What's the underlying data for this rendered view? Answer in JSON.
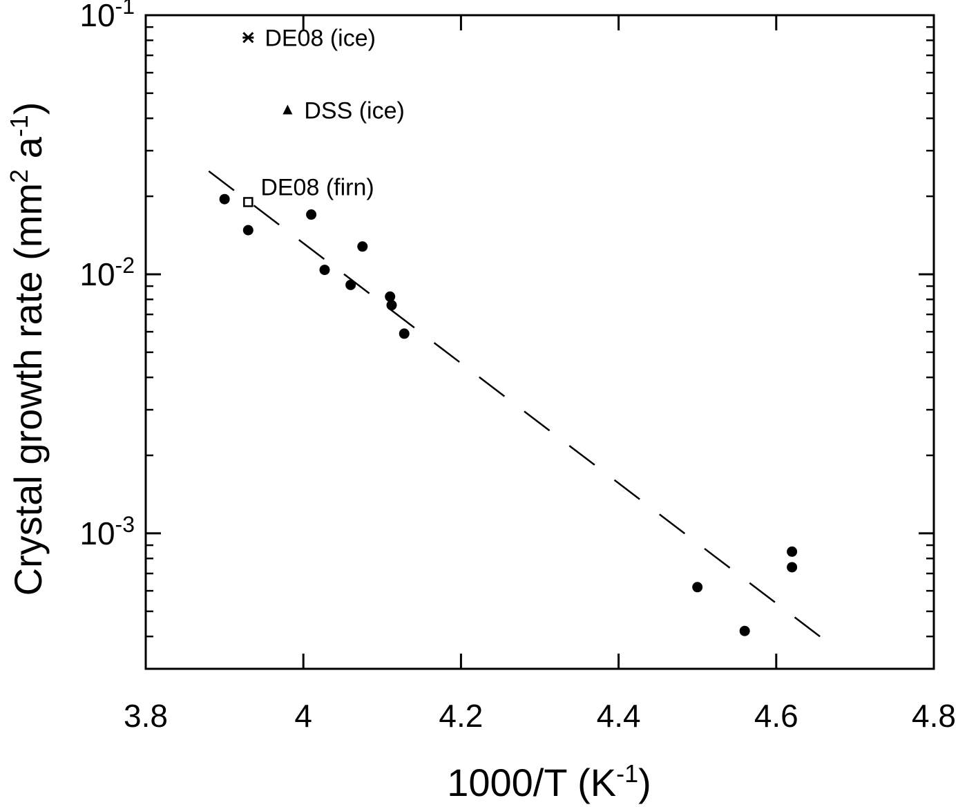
{
  "chart_data": {
    "type": "scatter",
    "xlabel": "1000/T (K",
    "xlabel_sup": "-1",
    "xlabel_end": ")",
    "ylabel": "Crystal growth rate (mm",
    "ylabel_sup1": "2",
    "ylabel_mid": " a",
    "ylabel_sup2": "-1",
    "ylabel_end": ")",
    "xlim": [
      3.8,
      4.8
    ],
    "ylim": [
      0.0003,
      0.1
    ],
    "yscale": "log",
    "grid": false,
    "xticks": [
      {
        "value": 3.8,
        "label": "3.8"
      },
      {
        "value": 4.0,
        "label": "4"
      },
      {
        "value": 4.2,
        "label": "4.2"
      },
      {
        "value": 4.4,
        "label": "4.4"
      },
      {
        "value": 4.6,
        "label": "4.6"
      },
      {
        "value": 4.8,
        "label": "4.8"
      }
    ],
    "yticks": [
      {
        "value": 0.1,
        "base": "10",
        "exp": "-1"
      },
      {
        "value": 0.01,
        "base": "10",
        "exp": "-2"
      },
      {
        "value": 0.001,
        "base": "10",
        "exp": "-3"
      }
    ],
    "series": [
      {
        "marker": "filled-circle",
        "points": [
          {
            "x": 3.9,
            "y": 0.0195
          },
          {
            "x": 3.93,
            "y": 0.0148
          },
          {
            "x": 4.01,
            "y": 0.017
          },
          {
            "x": 4.027,
            "y": 0.0104
          },
          {
            "x": 4.06,
            "y": 0.0091
          },
          {
            "x": 4.075,
            "y": 0.0128
          },
          {
            "x": 4.11,
            "y": 0.0082
          },
          {
            "x": 4.112,
            "y": 0.0076
          },
          {
            "x": 4.128,
            "y": 0.0059
          },
          {
            "x": 4.5,
            "y": 0.00062
          },
          {
            "x": 4.56,
            "y": 0.00042
          },
          {
            "x": 4.62,
            "y": 0.00085
          },
          {
            "x": 4.62,
            "y": 0.00074
          }
        ]
      },
      {
        "name": "DE08 (firn)",
        "marker": "open-square",
        "points": [
          {
            "x": 3.93,
            "y": 0.019
          }
        ]
      },
      {
        "name": "DE08 (ice)",
        "marker": "asterisk",
        "points": [
          {
            "x": 3.93,
            "y": 0.082
          }
        ]
      },
      {
        "name": "DSS (ice)",
        "marker": "filled-triangle",
        "points": [
          {
            "x": 3.98,
            "y": 0.043
          }
        ]
      }
    ],
    "fit_line": {
      "style": "dashed",
      "points": [
        {
          "x": 3.88,
          "y": 0.025
        },
        {
          "x": 4.67,
          "y": 0.00037
        }
      ]
    }
  }
}
